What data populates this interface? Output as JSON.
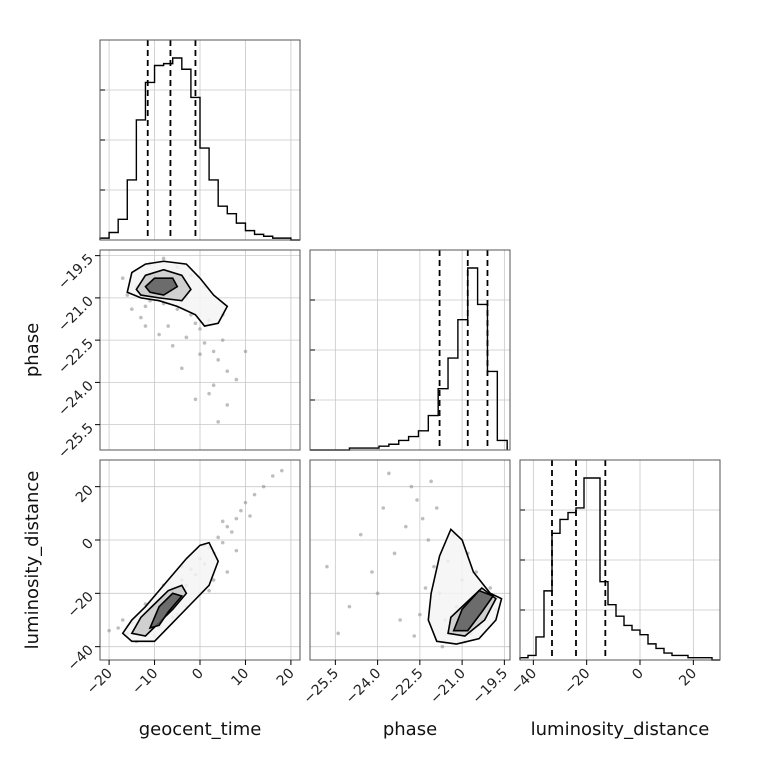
{
  "chart_data": {
    "type": "corner",
    "parameters": [
      "geocent_time",
      "phase",
      "luminosity_distance"
    ],
    "grid": true,
    "axes": {
      "geocent_time": {
        "label": "geocent_time",
        "lim": [
          -22,
          22
        ],
        "ticks": [
          -20,
          -10,
          0,
          10,
          20
        ],
        "tick_labels": [
          "−20",
          "−10",
          "0",
          "10",
          "20"
        ]
      },
      "phase": {
        "label": "phase",
        "lim": [
          -26.4,
          -19.3
        ],
        "ticks": [
          -25.5,
          -24.0,
          -22.5,
          -21.0,
          -19.5
        ],
        "tick_labels": [
          "−25.5",
          "−24.0",
          "−22.5",
          "−21.0",
          "−19.5"
        ]
      },
      "luminosity_distance": {
        "label": "luminosity_distance",
        "lim": [
          -45,
          30
        ],
        "ticks": [
          -40,
          -20,
          0,
          20
        ],
        "tick_labels": [
          "−40",
          "−20",
          "0",
          "20"
        ]
      }
    },
    "histograms": {
      "geocent_time": {
        "bin_edges": [
          -22,
          -20,
          -18,
          -16,
          -14,
          -12,
          -10,
          -8,
          -6,
          -4,
          -2,
          0,
          2,
          4,
          6,
          8,
          10,
          12,
          14,
          16,
          18,
          20,
          22
        ],
        "counts": [
          0.01,
          0.04,
          0.11,
          0.32,
          0.64,
          0.84,
          0.93,
          0.94,
          0.97,
          0.91,
          0.76,
          0.49,
          0.32,
          0.18,
          0.14,
          0.09,
          0.05,
          0.03,
          0.02,
          0.01,
          0.01,
          0
        ],
        "quantiles": [
          -11.5,
          -6.5,
          -1.0
        ]
      },
      "phase": {
        "bin_edges": [
          -26.4,
          -26.05,
          -25.7,
          -25.35,
          -25.0,
          -24.65,
          -24.3,
          -23.95,
          -23.6,
          -23.25,
          -22.9,
          -22.55,
          -22.2,
          -21.85,
          -21.5,
          -21.15,
          -20.8,
          -20.45,
          -20.1,
          -19.75,
          -19.4
        ],
        "counts": [
          0,
          0,
          0,
          0,
          0.01,
          0.01,
          0.01,
          0.02,
          0.03,
          0.05,
          0.07,
          0.1,
          0.18,
          0.32,
          0.48,
          0.68,
          0.95,
          0.76,
          0.41,
          0.05
        ],
        "quantiles": [
          -21.8,
          -20.8,
          -20.1
        ]
      },
      "luminosity_distance": {
        "bin_edges": [
          -45,
          -42,
          -39,
          -36,
          -33,
          -30,
          -27,
          -24,
          -21,
          -18,
          -15,
          -12,
          -9,
          -6,
          -3,
          0,
          3,
          6,
          9,
          12,
          15,
          18,
          21,
          24,
          27,
          30
        ],
        "counts": [
          0.01,
          0.02,
          0.1,
          0.3,
          0.55,
          0.61,
          0.64,
          0.66,
          0.79,
          0.79,
          0.34,
          0.24,
          0.19,
          0.15,
          0.13,
          0.11,
          0.07,
          0.05,
          0.03,
          0.02,
          0.02,
          0.01,
          0.01,
          0.01,
          0
        ],
        "quantiles": [
          -33,
          -24,
          -13
        ]
      }
    },
    "scatter_panels": [
      {
        "x": "geocent_time",
        "y": "phase",
        "points": [
          [
            -14,
            -20.6
          ],
          [
            -13,
            -20.9
          ],
          [
            -12,
            -20.4
          ],
          [
            -11,
            -21.1
          ],
          [
            -10,
            -20.7
          ],
          [
            -9,
            -20.5
          ],
          [
            -8,
            -21.2
          ],
          [
            -7,
            -20.3
          ],
          [
            -6,
            -20.8
          ],
          [
            -5,
            -21.4
          ],
          [
            -4,
            -20.6
          ],
          [
            -3,
            -21.0
          ],
          [
            -2,
            -21.6
          ],
          [
            -1,
            -21.9
          ],
          [
            0,
            -22.1
          ],
          [
            1,
            -22.6
          ],
          [
            2,
            -21.8
          ],
          [
            3,
            -22.9
          ],
          [
            4,
            -23.2
          ],
          [
            5,
            -22.5
          ],
          [
            6,
            -23.6
          ],
          [
            -15,
            -21.4
          ],
          [
            -16,
            -20.9
          ],
          [
            -12,
            -22.0
          ],
          [
            -9,
            -22.3
          ],
          [
            -6,
            -22.7
          ],
          [
            -3,
            -22.4
          ],
          [
            0,
            -23.0
          ],
          [
            3,
            -24.1
          ],
          [
            8,
            -23.9
          ],
          [
            -11,
            -19.8
          ],
          [
            -8,
            -19.6
          ],
          [
            -5,
            -19.9
          ],
          [
            -2,
            -20.2
          ],
          [
            1,
            -20.6
          ],
          [
            5,
            -21.6
          ],
          [
            -17,
            -20.3
          ],
          [
            -13,
            -21.7
          ],
          [
            -7,
            -22.0
          ],
          [
            2,
            -24.4
          ],
          [
            6,
            -24.8
          ],
          [
            10,
            -22.9
          ],
          [
            -4,
            -23.5
          ],
          [
            -1,
            -24.6
          ],
          [
            4,
            -25.4
          ],
          [
            -9,
            -21.0
          ],
          [
            -10,
            -20.2
          ],
          [
            -8,
            -20.9
          ],
          [
            -6,
            -20.4
          ],
          [
            -12,
            -21.3
          ]
        ],
        "contours": [
          [
            [
              -16,
              -20.8
            ],
            [
              -15,
              -20.1
            ],
            [
              -12,
              -19.8
            ],
            [
              -8,
              -19.7
            ],
            [
              -3,
              -19.8
            ],
            [
              0,
              -20.3
            ],
            [
              3,
              -20.9
            ],
            [
              6,
              -21.3
            ],
            [
              4,
              -21.9
            ],
            [
              1,
              -22.0
            ],
            [
              -1,
              -21.6
            ],
            [
              -5,
              -21.3
            ],
            [
              -9,
              -21.1
            ],
            [
              -13,
              -21.0
            ],
            [
              -16,
              -20.8
            ]
          ],
          [
            [
              -14,
              -20.7
            ],
            [
              -12,
              -20.2
            ],
            [
              -8,
              -20.0
            ],
            [
              -4,
              -20.2
            ],
            [
              -2,
              -20.7
            ],
            [
              -4,
              -21.1
            ],
            [
              -9,
              -21.0
            ],
            [
              -13,
              -20.9
            ],
            [
              -14,
              -20.7
            ]
          ],
          [
            [
              -12,
              -20.6
            ],
            [
              -10,
              -20.3
            ],
            [
              -6,
              -20.3
            ],
            [
              -5,
              -20.6
            ],
            [
              -8,
              -20.9
            ],
            [
              -11,
              -20.8
            ],
            [
              -12,
              -20.6
            ]
          ]
        ]
      },
      {
        "x": "geocent_time",
        "y": "luminosity_distance",
        "points": [
          [
            -18,
            -33
          ],
          [
            -16,
            -35
          ],
          [
            -15,
            -31
          ],
          [
            -13,
            -34
          ],
          [
            -12,
            -28
          ],
          [
            -11,
            -31
          ],
          [
            -10,
            -25
          ],
          [
            -9,
            -27
          ],
          [
            -8,
            -22
          ],
          [
            -7,
            -24
          ],
          [
            -6,
            -18
          ],
          [
            -5,
            -20
          ],
          [
            -4,
            -15
          ],
          [
            -3,
            -17
          ],
          [
            -2,
            -11
          ],
          [
            -1,
            -13
          ],
          [
            0,
            -7
          ],
          [
            1,
            -9
          ],
          [
            2,
            -3
          ],
          [
            3,
            -5
          ],
          [
            4,
            1
          ],
          [
            5,
            -1
          ],
          [
            6,
            5
          ],
          [
            7,
            3
          ],
          [
            8,
            8
          ],
          [
            9,
            11
          ],
          [
            10,
            14
          ],
          [
            12,
            17
          ],
          [
            14,
            20
          ],
          [
            16,
            24
          ],
          [
            18,
            26
          ],
          [
            -14,
            -38
          ],
          [
            -9,
            -33
          ],
          [
            -6,
            -29
          ],
          [
            -3,
            -25
          ],
          [
            0,
            -20
          ],
          [
            3,
            -15
          ],
          [
            -17,
            -30
          ],
          [
            -12,
            -24
          ],
          [
            -8,
            -17
          ],
          [
            -4,
            -10
          ],
          [
            1,
            -2
          ],
          [
            5,
            7
          ],
          [
            11,
            9
          ],
          [
            -20,
            -34
          ],
          [
            -10,
            -36
          ],
          [
            -5,
            -28
          ],
          [
            2,
            -19
          ],
          [
            6,
            -12
          ],
          [
            8,
            -4
          ]
        ],
        "contours": [
          [
            [
              -17,
              -35
            ],
            [
              -15,
              -38
            ],
            [
              -10,
              -38
            ],
            [
              -6,
              -31
            ],
            [
              -2,
              -24
            ],
            [
              2,
              -17
            ],
            [
              4,
              -8
            ],
            [
              2,
              -1
            ],
            [
              0,
              -2
            ],
            [
              -3,
              -7
            ],
            [
              -6,
              -13
            ],
            [
              -9,
              -19
            ],
            [
              -12,
              -25
            ],
            [
              -15,
              -30
            ],
            [
              -17,
              -35
            ]
          ],
          [
            [
              -15,
              -35
            ],
            [
              -12,
              -36
            ],
            [
              -9,
              -31
            ],
            [
              -6,
              -26
            ],
            [
              -3,
              -20
            ],
            [
              -4,
              -17
            ],
            [
              -7,
              -19
            ],
            [
              -10,
              -24
            ],
            [
              -13,
              -29
            ],
            [
              -15,
              -35
            ]
          ],
          [
            [
              -11,
              -33
            ],
            [
              -9,
              -32
            ],
            [
              -7,
              -27
            ],
            [
              -4,
              -21
            ],
            [
              -6,
              -20
            ],
            [
              -9,
              -25
            ],
            [
              -11,
              -33
            ]
          ]
        ]
      },
      {
        "x": "phase",
        "y": "luminosity_distance",
        "points": [
          [
            -22.2,
            0
          ],
          [
            -22.0,
            -10
          ],
          [
            -21.8,
            -20
          ],
          [
            -21.6,
            -30
          ],
          [
            -21.4,
            -35
          ],
          [
            -21.2,
            -25
          ],
          [
            -21.0,
            -15
          ],
          [
            -20.8,
            -5
          ],
          [
            -20.6,
            -28
          ],
          [
            -20.4,
            -32
          ],
          [
            -20.2,
            -22
          ],
          [
            -20.0,
            -18
          ],
          [
            -19.8,
            -26
          ],
          [
            -22.4,
            8
          ],
          [
            -22.6,
            15
          ],
          [
            -22.8,
            20
          ],
          [
            -23.0,
            5
          ],
          [
            -23.4,
            -5
          ],
          [
            -23.8,
            12
          ],
          [
            -24.2,
            -12
          ],
          [
            -24.6,
            2
          ],
          [
            -25.0,
            -25
          ],
          [
            -25.4,
            -35
          ],
          [
            -22.1,
            22
          ],
          [
            -21.9,
            12
          ],
          [
            -21.3,
            2
          ],
          [
            -20.9,
            -38
          ],
          [
            -20.5,
            -12
          ],
          [
            -21.7,
            -40
          ],
          [
            -22.3,
            -18
          ],
          [
            -23.2,
            -30
          ],
          [
            -24.0,
            -20
          ],
          [
            -25.8,
            -10
          ],
          [
            -23.6,
            25
          ],
          [
            -22.5,
            -28
          ],
          [
            -20.7,
            -35
          ],
          [
            -20.3,
            -30
          ],
          [
            -21.1,
            -33
          ],
          [
            -21.5,
            -8
          ],
          [
            -22.7,
            -36
          ]
        ],
        "contours": [
          [
            [
              -21.9,
              -38
            ],
            [
              -21.2,
              -39
            ],
            [
              -20.4,
              -37
            ],
            [
              -19.8,
              -30
            ],
            [
              -19.6,
              -22
            ],
            [
              -20.0,
              -20
            ],
            [
              -20.6,
              -12
            ],
            [
              -21.0,
              0
            ],
            [
              -21.4,
              4
            ],
            [
              -21.8,
              -6
            ],
            [
              -22.1,
              -20
            ],
            [
              -22.2,
              -30
            ],
            [
              -21.9,
              -38
            ]
          ],
          [
            [
              -21.5,
              -35
            ],
            [
              -20.9,
              -36
            ],
            [
              -20.2,
              -30
            ],
            [
              -19.8,
              -22
            ],
            [
              -20.3,
              -18
            ],
            [
              -20.9,
              -24
            ],
            [
              -21.4,
              -29
            ],
            [
              -21.5,
              -35
            ]
          ],
          [
            [
              -21.3,
              -34
            ],
            [
              -20.8,
              -34
            ],
            [
              -20.3,
              -27
            ],
            [
              -19.9,
              -21
            ],
            [
              -20.4,
              -19
            ],
            [
              -21.0,
              -26
            ],
            [
              -21.3,
              -34
            ]
          ]
        ]
      }
    ]
  }
}
